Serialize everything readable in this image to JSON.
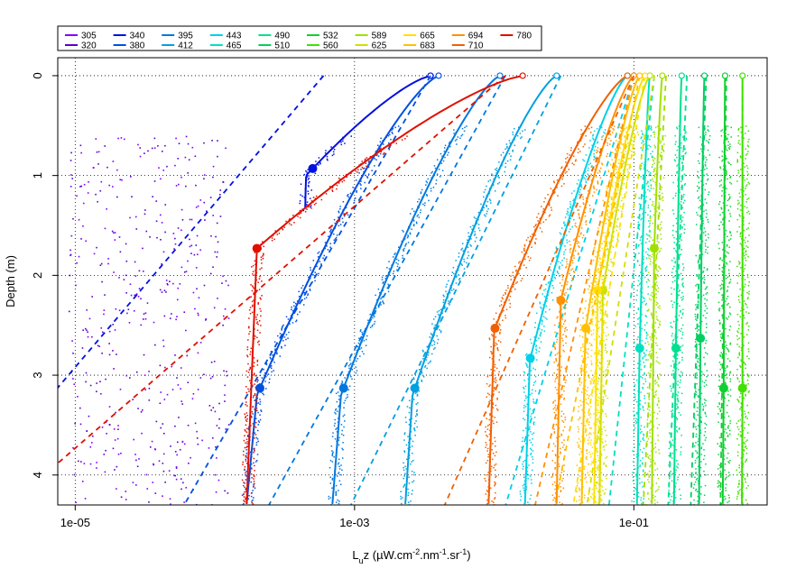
{
  "chart_data": {
    "type": "line",
    "xlabel": "L",
    "xlabel_sub": "u",
    "xlabel_rest": "z  (µW.cm",
    "xlabel_sup1": "-2",
    "xlabel_mid": ".nm",
    "xlabel_sup2": "-1",
    "xlabel_mid2": ".sr",
    "xlabel_sup3": "-1",
    "xlabel_end": ")",
    "ylabel": "Depth (m)",
    "x_scale": "log",
    "xlim": [
      7.5e-06,
      0.9
    ],
    "ylim": [
      4.3,
      -0.18
    ],
    "x_ticks": [
      {
        "value": 1e-05,
        "label": "1e-05"
      },
      {
        "value": 0.001,
        "label": "1e-03"
      },
      {
        "value": 0.1,
        "label": "1e-01"
      }
    ],
    "y_ticks": [
      {
        "value": 0,
        "label": "0"
      },
      {
        "value": 1,
        "label": "1"
      },
      {
        "value": 2,
        "label": "2"
      },
      {
        "value": 3,
        "label": "3"
      },
      {
        "value": 4,
        "label": "4"
      }
    ],
    "grid": true,
    "legend_placement": "top-left",
    "series": [
      {
        "name": "305",
        "color": "#7f00ff",
        "kind": "noise"
      },
      {
        "name": "320",
        "color": "#5a00c8",
        "kind": "noise"
      },
      {
        "name": "340",
        "color": "#0010e0",
        "surface": 0.0035,
        "knee": 1.0,
        "deep": 0.00045,
        "marker_y": 0.93,
        "fit_surface": 0.0006,
        "fit_y4": 2.2e-06
      },
      {
        "name": "380",
        "color": "#0050e0",
        "surface": 0.004,
        "knee": 3.2,
        "deep": 0.0002,
        "marker_y": 3.13,
        "fit_surface": 0.0035,
        "fit_y4": 8e-05
      },
      {
        "name": "395",
        "color": "#0078e0",
        "surface": 0.011,
        "knee": 3.2,
        "deep": 0.0008,
        "marker_y": 3.13,
        "fit_surface": 0.012,
        "fit_y4": 0.00032
      },
      {
        "name": "412",
        "color": "#00a0e0",
        "surface": 0.028,
        "knee": 3.2,
        "deep": 0.0026,
        "marker_y": 3.13,
        "fit_surface": 0.03,
        "fit_y4": 0.0012
      },
      {
        "name": "443",
        "color": "#00d0e8",
        "surface": 0.09,
        "knee": 2.85,
        "deep": 0.018,
        "marker_y": 2.83,
        "fit_surface": 0.1,
        "fit_y4": 0.014
      },
      {
        "name": "465",
        "color": "#00e0c0",
        "surface": 0.13,
        "knee": 2.75,
        "deep": 0.11,
        "marker_y": 2.73,
        "fit_surface": 0.14,
        "fit_y4": 0.07
      },
      {
        "name": "490",
        "color": "#00e090",
        "surface": 0.22,
        "knee": 2.75,
        "deep": 0.2,
        "marker_y": 2.73,
        "fit_surface": 0.24,
        "fit_y4": 0.18
      },
      {
        "name": "510",
        "color": "#00d060",
        "surface": 0.32,
        "knee": 2.65,
        "deep": 0.3,
        "marker_y": 2.63,
        "fit_surface": 0.33,
        "fit_y4": 0.26
      },
      {
        "name": "532",
        "color": "#10d030",
        "surface": 0.45,
        "knee": 3.13,
        "deep": 0.44,
        "marker_y": 3.13,
        "fit_surface": 0.46,
        "fit_y4": 0.42
      },
      {
        "name": "560",
        "color": "#40e000",
        "surface": 0.6,
        "knee": 3.13,
        "deep": 0.6,
        "marker_y": 3.13,
        "fit_surface": 0.6,
        "fit_y4": 0.6
      },
      {
        "name": "589",
        "color": "#a0e000",
        "surface": 0.16,
        "knee": 1.73,
        "deep": 0.14,
        "marker_y": 1.73,
        "fit_surface": 0.17,
        "fit_y4": 0.12
      },
      {
        "name": "625",
        "color": "#d0e000",
        "surface": 0.13,
        "knee": 2.15,
        "deep": 0.06,
        "marker_y": 2.15,
        "fit_surface": 0.14,
        "fit_y4": 0.05
      },
      {
        "name": "665",
        "color": "#ffe000",
        "surface": 0.12,
        "knee": 2.15,
        "deep": 0.055,
        "marker_y": 2.15,
        "fit_surface": 0.12,
        "fit_y4": 0.04
      },
      {
        "name": "683",
        "color": "#ffc000",
        "surface": 0.11,
        "knee": 2.55,
        "deep": 0.045,
        "marker_y": 2.53,
        "fit_surface": 0.11,
        "fit_y4": 0.03
      },
      {
        "name": "694",
        "color": "#ff9000",
        "surface": 0.1,
        "knee": 2.25,
        "deep": 0.03,
        "marker_y": 2.25,
        "fit_surface": 0.1,
        "fit_y4": 0.022
      },
      {
        "name": "710",
        "color": "#f06000",
        "surface": 0.09,
        "knee": 2.55,
        "deep": 0.01,
        "marker_y": 2.53,
        "fit_surface": 0.1,
        "fit_y4": 0.0055
      },
      {
        "name": "780",
        "color": "#e01000",
        "surface": 0.016,
        "knee": 1.73,
        "deep": 0.0002,
        "marker_y": 1.73,
        "fit_surface": 0.012,
        "fit_y4": 6e-06
      }
    ]
  }
}
